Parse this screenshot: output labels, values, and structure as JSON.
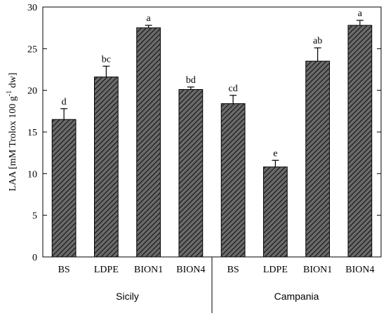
{
  "chart_data": {
    "type": "bar",
    "ylabel_main": "LAA [mM Trolox 100 g",
    "ylabel_sup": "-1",
    "ylabel_tail": " dw]",
    "ylim": [
      0,
      30
    ],
    "yticks": [
      0,
      5,
      10,
      15,
      20,
      25,
      30
    ],
    "grid": false,
    "categories": [
      "BS",
      "LDPE",
      "BION1",
      "BION4",
      "BS",
      "LDPE",
      "BION1",
      "BION4"
    ],
    "values": [
      16.5,
      21.6,
      27.5,
      20.1,
      18.4,
      10.8,
      23.5,
      27.8
    ],
    "errors": [
      1.3,
      1.3,
      0.3,
      0.3,
      1.0,
      0.8,
      1.6,
      0.6
    ],
    "significance": [
      "d",
      "bc",
      "a",
      "bd",
      "cd",
      "e",
      "ab",
      "a"
    ],
    "groups": [
      {
        "name": "Sicily",
        "start": 0,
        "end": 3
      },
      {
        "name": "Campania",
        "start": 4,
        "end": 7
      }
    ],
    "bar_fill": "#555555",
    "hatch_color": "#000000"
  }
}
